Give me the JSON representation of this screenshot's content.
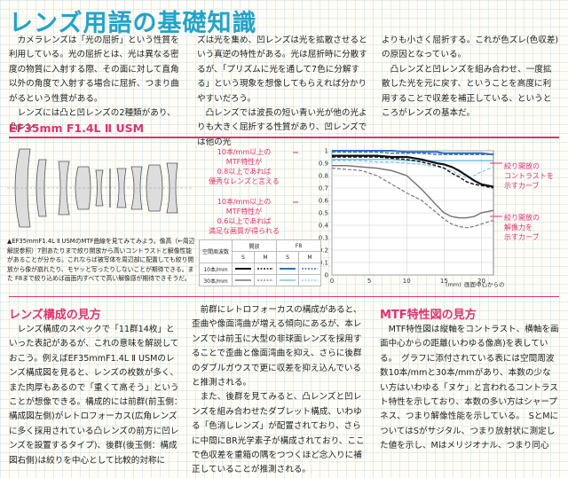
{
  "title": "レンズ用語の基礎知識",
  "intro": {
    "col1": [
      "　カメラレンズは「光の屈折」という性質を利用している。光の屈折とは、光は異なる密度の物質に入射する際、その面に対して直角以外の角度で入射する場合に屈折、つまり曲がるという性質がある。",
      "　レンズには凸と凹レンズの2種類があり、凸レン"
    ],
    "col2": [
      "ズは光を集め、凹レンズは光を拡散させるという真逆の特性がある。光は屈折時に分散するが、「プリズムに光を通して7色に分解する」という現象を想像してもらえれば分かりやすいだろう。",
      "　凸レンズでは波長の短い青い光が他の光よりも大きく屈折する性質があり、凹レンズでは他の光"
    ],
    "col3": [
      "よりも小さく屈折する。これが色ズレ(色収差)の原因となっている。",
      "　凸レンズと凹レンズを組み合わせ、一度拡散した光を元に戻す、ということを高度に利用することで収差を補正している、というところがレンズの基本だ。"
    ]
  },
  "lens_heading": "EF35mm F1.4L Ⅱ USM",
  "lens_caption": "▲EF35mmF1.4L Ⅱ USMのMTF曲線を見てみてみよう。像高（←周辺解説参照）7割あたりまで絞り開放から高いコントラストと解像性能があることが分かる。これならば被写体を周辺部に配置しても絞り開放から像が崩れたり、モヤッと写ったりしないことが期待できる。また F8まで絞り込めば画面内すべてで高い解像感が期待できそうだ。",
  "mtf": {
    "annot_left_top": [
      "10本/mm以上の",
      "MTF特性が",
      "0.8以上であれば",
      "優秀なレンズと言える"
    ],
    "annot_left_bottom": [
      "10本/mm以上の",
      "MTF特性が",
      "0.6以上であれば",
      "満足な画質が得られる"
    ],
    "annot_right_top": [
      "絞り開放の",
      "コントラストを",
      "示すカーブ"
    ],
    "annot_right_bottom": [
      "絞り開放の",
      "解像力を",
      "示すカーブ"
    ],
    "y_ticks": [
      "1",
      "0.9",
      "0.8",
      "0.7",
      "0.6",
      "0.5",
      "0.4",
      "0.3",
      "0.2",
      "0.1",
      "0"
    ],
    "x_ticks": [
      "0",
      "5",
      "10",
      "15",
      "20"
    ],
    "x_unit": "(mm)",
    "x_label": "画面中心からの距離",
    "legend": {
      "col_freq": "空間周波数",
      "col_open": "開放",
      "col_f8": "F8",
      "s": "S",
      "m": "M",
      "row10": "10本/mm",
      "row30": "30本/mm"
    }
  },
  "chart_data": {
    "type": "line",
    "xlabel": "画面中心からの距離",
    "x_unit": "(mm)",
    "xlim": [
      0,
      21.6
    ],
    "ylim": [
      0,
      1
    ],
    "x": [
      0,
      2,
      4,
      6,
      8,
      10,
      12,
      14,
      15,
      16,
      17,
      18,
      19,
      20,
      21.6
    ],
    "series": [
      {
        "style": "blue-solid",
        "values": [
          1.0,
          1.0,
          1.0,
          1.0,
          1.0,
          0.99,
          0.99,
          0.99,
          0.98,
          0.98,
          0.98,
          0.98,
          0.98,
          0.98,
          0.97
        ]
      },
      {
        "style": "blue-dashed",
        "values": [
          0.99,
          0.99,
          0.99,
          0.99,
          0.98,
          0.98,
          0.98,
          0.97,
          0.97,
          0.97,
          0.97,
          0.97,
          0.97,
          0.97,
          0.97
        ]
      },
      {
        "style": "lightblue-solid",
        "values": [
          0.93,
          0.93,
          0.93,
          0.93,
          0.93,
          0.92,
          0.92,
          0.92,
          0.92,
          0.92,
          0.92,
          0.92,
          0.92,
          0.92,
          0.92
        ]
      },
      {
        "style": "lightblue-dashed",
        "values": [
          0.92,
          0.92,
          0.92,
          0.91,
          0.91,
          0.9,
          0.89,
          0.87,
          0.86,
          0.84,
          0.81,
          0.78,
          0.8,
          0.83,
          0.87
        ]
      },
      {
        "style": "black-solid",
        "values": [
          0.96,
          0.96,
          0.96,
          0.96,
          0.95,
          0.95,
          0.93,
          0.9,
          0.89,
          0.87,
          0.84,
          0.8,
          0.76,
          0.73,
          0.71
        ]
      },
      {
        "style": "black-dashed",
        "values": [
          0.95,
          0.95,
          0.95,
          0.95,
          0.94,
          0.93,
          0.91,
          0.88,
          0.86,
          0.82,
          0.79,
          0.75,
          0.73,
          0.72,
          0.7
        ]
      },
      {
        "style": "gray-solid",
        "values": [
          0.88,
          0.88,
          0.87,
          0.86,
          0.84,
          0.8,
          0.69,
          0.56,
          0.5,
          0.47,
          0.46,
          0.46,
          0.47,
          0.5,
          0.52
        ]
      },
      {
        "style": "gray-dashed",
        "values": [
          0.86,
          0.85,
          0.84,
          0.8,
          0.73,
          0.66,
          0.6,
          0.5,
          0.45,
          0.41,
          0.39,
          0.38,
          0.39,
          0.41,
          0.44
        ]
      }
    ]
  },
  "sections": {
    "s1": {
      "heading": "レンズ構成の見方",
      "body": "　レンズ構成のスペックで「11群14枚」といった表記があるが、これの意味を解説しておこう。例えばEF35mmF1.4L Ⅱ USMのレンズ構成図を見ると、レンズの枚数が多く、また肉厚もあるので「重くて高そう」ということが想像できる。構成的には前群(前玉側：構成図左側)がレトロフォーカス(広角レンズに多く採用されている凸レンズの前方に凹レンズを設置するタイプ)、後群(後玉側：構成図右側)は絞りを中心として比較的対称に"
    },
    "s2": {
      "body1": "　前群にレトロフォーカスの構成があると、歪曲や像面湾曲が増える傾向にあるが、本レンズでは前玉に大型の非球面レンズを採用することで歪曲と像面湾曲を抑え、さらに後群のダブルガウスで更に収差を抑え込んでいると推測される。",
      "body2": "　また、後群を見てみると、凸レンズと凹レンズを組み合わせたダブレット構成、いわゆる「色消しレンズ」が配置されており、さらに中間にBR光学素子が構成されており、ここで色収差を重箱の隅をつつくほど念入りに補正していることが推測される。"
    },
    "s3": {
      "heading": "MTF特性図の見方",
      "body": "　MTF特性図は縦軸をコントラスト、横軸を画面中心からの距離(いわゆる像高)を表している。　グラフに添付されている表には空間周波数10本/mmと30本/mmがあり、本数の少ない方はいわゆる「ヌケ」と言われるコントラスト特性を示しており、本数の多い方はシャープネス、つまり解像性能を示している。　SとMについてはSがサジタル、つまり放射状に測定した値を示し、Mはメリジオナル、つまり同心"
    }
  },
  "colors": {
    "accent_pink": "#e0326c",
    "title_blue": "#23a3c9",
    "curve_blue": "#2d6fc4",
    "curve_lightblue": "#7fc3e8"
  }
}
